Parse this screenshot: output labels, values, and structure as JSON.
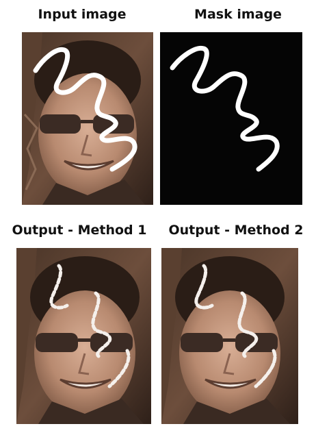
{
  "captions": {
    "input": "Input image",
    "mask": "Mask image",
    "output1": "Output - Method 1",
    "output2": "Output - Method 2"
  },
  "colors": {
    "background": "#ffffff",
    "mask_background": "#050505",
    "stroke": "#ffffff",
    "sepia_dark": "#3b2a20",
    "sepia_mid": "#7a5a45",
    "sepia_skin": "#c99a80"
  }
}
